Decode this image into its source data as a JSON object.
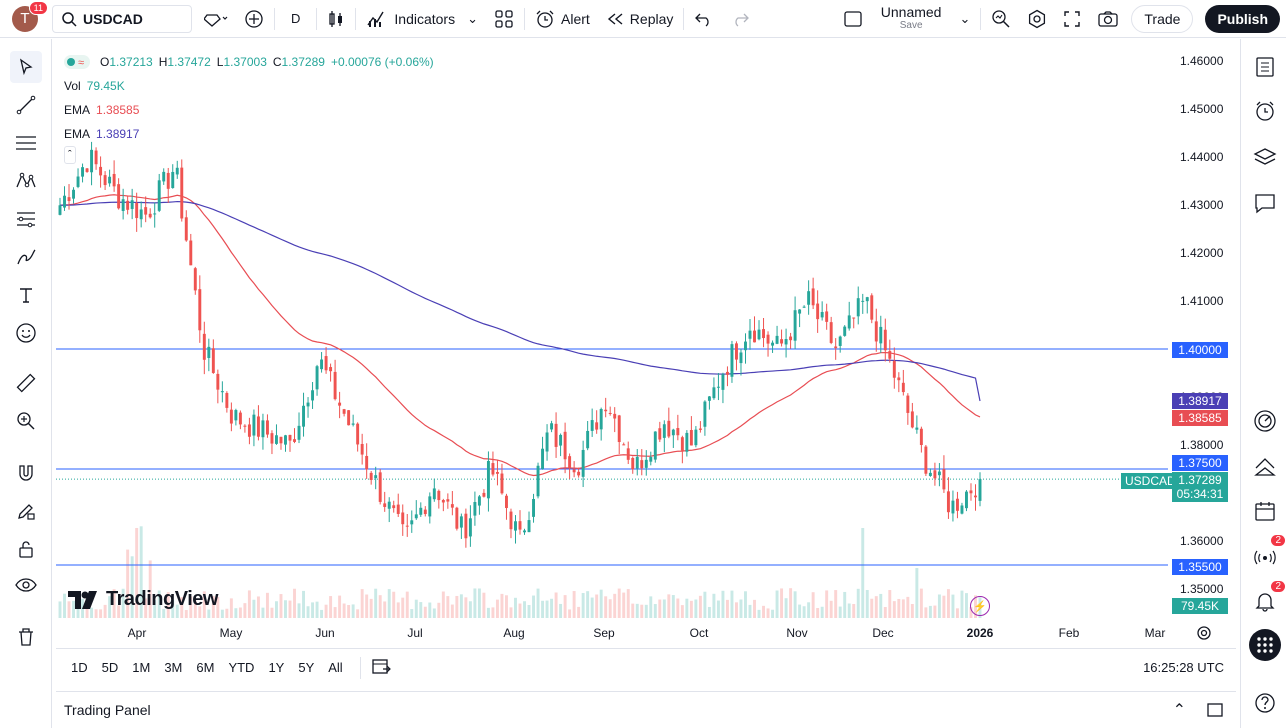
{
  "topbar": {
    "avatar_letter": "T",
    "notif_count": "11",
    "symbol": "USDCAD",
    "interval": "D",
    "indicators_label": "Indicators",
    "alert_label": "Alert",
    "replay_label": "Replay",
    "layout_name": "Unnamed",
    "layout_sub": "Save",
    "trade_label": "Trade",
    "publish_label": "Publish"
  },
  "legend": {
    "open_lbl": "O",
    "open": "1.37213",
    "high_lbl": "H",
    "high": "1.37472",
    "low_lbl": "L",
    "low": "1.37003",
    "close_lbl": "C",
    "close": "1.37289",
    "change": "+0.00076 (+0.06%)",
    "vol_label": "Vol",
    "vol_value": "79.45K",
    "ema1_label": "EMA",
    "ema1_value": "1.38585",
    "ema2_label": "EMA",
    "ema2_value": "1.38917"
  },
  "price_axis": [
    "1.46000",
    "1.45000",
    "1.44000",
    "1.43000",
    "1.42000",
    "1.41000",
    "1.40000",
    "1.39000",
    "1.38000",
    "1.37000",
    "1.36000",
    "1.35000"
  ],
  "time_axis": [
    "Apr",
    "May",
    "Jun",
    "Jul",
    "Aug",
    "Sep",
    "Oct",
    "Nov",
    "Dec",
    "2026",
    "Feb",
    "Mar"
  ],
  "price_labels": {
    "line_1_40": "1.40000",
    "ema_blue": "1.38917",
    "ema_red": "1.38585",
    "line_1_375": "1.37500",
    "current_symbol": "USDCAD",
    "current": "1.37289",
    "countdown": "05:34:31",
    "line_1_355": "1.35500",
    "volume": "79.45K"
  },
  "watermark": "TradingView",
  "bottombar": {
    "ranges": [
      "1D",
      "5D",
      "1M",
      "3M",
      "6M",
      "YTD",
      "1Y",
      "5Y",
      "All"
    ],
    "clock": "16:25:28 UTC"
  },
  "panel": {
    "title": "Trading Panel"
  },
  "right_badges": {
    "b1": "2",
    "b2": "2"
  },
  "colors": {
    "up": "#26a69a",
    "down": "#ef5350",
    "ema_red": "#e84d53",
    "ema_blue": "#4a3fb5",
    "hline": "#2962ff",
    "accent": "#2962ff"
  },
  "chart_data": {
    "type": "candlestick",
    "symbol": "USDCAD",
    "interval": "D",
    "ylim": [
      1.345,
      1.465
    ],
    "x_ticks": [
      "Apr",
      "May",
      "Jun",
      "Jul",
      "Aug",
      "Sep",
      "Oct",
      "Nov",
      "Dec",
      "2026",
      "Feb",
      "Mar"
    ],
    "horizontal_lines": [
      1.4,
      1.375,
      1.355
    ],
    "anchors": [
      {
        "t": "Mar",
        "p": 1.43
      },
      {
        "t": "mid-Mar",
        "p": 1.44
      },
      {
        "t": "late-Mar",
        "p": 1.432
      },
      {
        "t": "Apr",
        "p": 1.428
      },
      {
        "t": "early-Apr",
        "p": 1.438
      },
      {
        "t": "Apr",
        "p": 1.4
      },
      {
        "t": "mid-Apr",
        "p": 1.386
      },
      {
        "t": "late-Apr",
        "p": 1.383
      },
      {
        "t": "May",
        "p": 1.38
      },
      {
        "t": "mid-May",
        "p": 1.398
      },
      {
        "t": "late-May",
        "p": 1.385
      },
      {
        "t": "Jun",
        "p": 1.372
      },
      {
        "t": "mid-Jun",
        "p": 1.36
      },
      {
        "t": "late-Jun",
        "p": 1.372
      },
      {
        "t": "Jul",
        "p": 1.362
      },
      {
        "t": "mid-Jul",
        "p": 1.375
      },
      {
        "t": "late-Jul",
        "p": 1.36
      },
      {
        "t": "Aug",
        "p": 1.383
      },
      {
        "t": "mid-Aug",
        "p": 1.376
      },
      {
        "t": "late-Aug",
        "p": 1.39
      },
      {
        "t": "Sep",
        "p": 1.375
      },
      {
        "t": "mid-Sep",
        "p": 1.385
      },
      {
        "t": "late-Sep",
        "p": 1.38
      },
      {
        "t": "Oct",
        "p": 1.395
      },
      {
        "t": "mid-Oct",
        "p": 1.405
      },
      {
        "t": "late-Oct",
        "p": 1.4
      },
      {
        "t": "Nov",
        "p": 1.41
      },
      {
        "t": "mid-Nov",
        "p": 1.4
      },
      {
        "t": "late-Nov",
        "p": 1.41
      },
      {
        "t": "Dec",
        "p": 1.395
      },
      {
        "t": "mid-Dec",
        "p": 1.378
      },
      {
        "t": "late-Dec",
        "p": 1.367
      },
      {
        "t": "2026",
        "p": 1.3729
      }
    ],
    "ema_fast_last": 1.38585,
    "ema_slow_last": 1.38917,
    "last_close": 1.37289,
    "volume_last": "79.45K"
  }
}
